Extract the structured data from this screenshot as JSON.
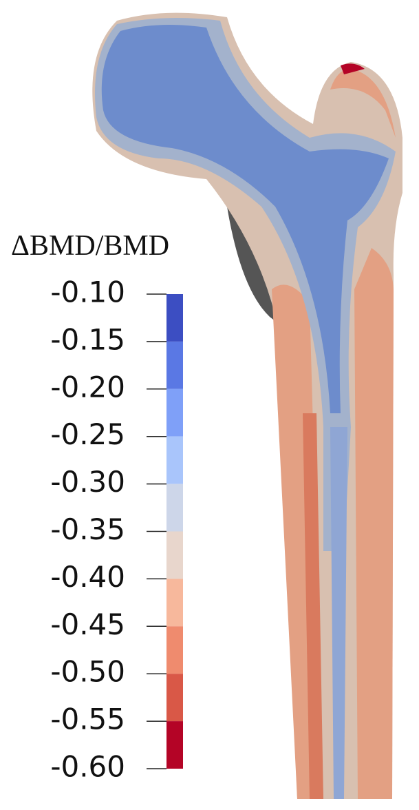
{
  "colorbar": {
    "title": "ΔBMD/BMD",
    "range": [
      -0.6,
      -0.1
    ],
    "ticks": [
      {
        "value": -0.1,
        "label": "-0.10"
      },
      {
        "value": -0.15,
        "label": "-0.15"
      },
      {
        "value": -0.2,
        "label": "-0.20"
      },
      {
        "value": -0.25,
        "label": "-0.25"
      },
      {
        "value": -0.3,
        "label": "-0.30"
      },
      {
        "value": -0.35,
        "label": "-0.35"
      },
      {
        "value": -0.4,
        "label": "-0.40"
      },
      {
        "value": -0.45,
        "label": "-0.45"
      },
      {
        "value": -0.5,
        "label": "-0.50"
      },
      {
        "value": -0.55,
        "label": "-0.55"
      },
      {
        "value": -0.6,
        "label": "-0.60"
      }
    ],
    "colors": [
      "#3c4ec2",
      "#5a78e4",
      "#7fa0f8",
      "#a9c5fb",
      "#cdd6e9",
      "#e8d6cc",
      "#f7b89c",
      "#ef8b6e",
      "#d95847",
      "#b40426"
    ]
  }
}
